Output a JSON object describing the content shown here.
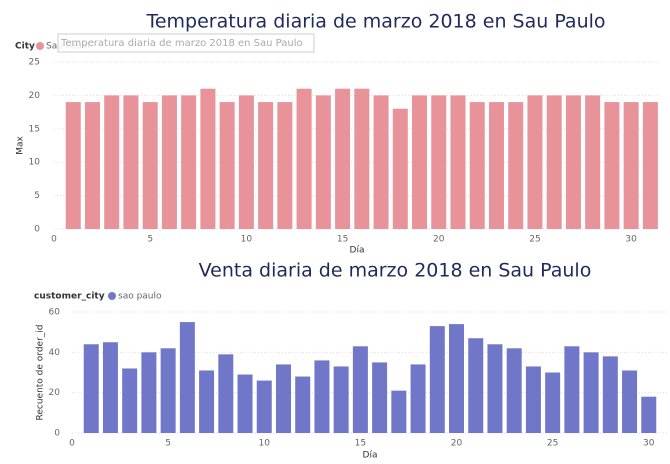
{
  "chart_data": [
    {
      "type": "bar",
      "title": "Temperatura diaria de marzo 2018 en Sau Paulo",
      "tooltip": "Temperatura diaria de marzo 2018 en Sau Paulo",
      "legend_title": "City",
      "x": [
        1,
        2,
        3,
        4,
        5,
        6,
        7,
        8,
        9,
        10,
        11,
        12,
        13,
        14,
        15,
        16,
        17,
        18,
        19,
        20,
        21,
        22,
        23,
        24,
        25,
        26,
        27,
        28,
        29,
        30,
        31
      ],
      "series": [
        {
          "name": "Sao Paulo",
          "color": "#e8939a",
          "values": [
            19,
            19,
            20,
            20,
            19,
            20,
            20,
            21,
            19,
            20,
            19,
            19,
            21,
            20,
            21,
            21,
            20,
            18,
            20,
            20,
            20,
            19,
            19,
            19,
            20,
            20,
            20,
            20,
            19,
            19,
            19
          ]
        }
      ],
      "xlabel": "Día",
      "ylabel": "Max",
      "xlim": [
        0,
        31.5
      ],
      "xticks": [
        0,
        5,
        10,
        15,
        20,
        25,
        30
      ],
      "ylim": [
        0,
        25
      ],
      "yticks": [
        0,
        5,
        10,
        15,
        20,
        25
      ],
      "grid": true
    },
    {
      "type": "bar",
      "title": "Venta diaria de marzo 2018 en Sau Paulo",
      "legend_title": "customer_city",
      "x": [
        1,
        2,
        3,
        4,
        5,
        6,
        7,
        8,
        9,
        10,
        11,
        12,
        13,
        14,
        15,
        16,
        17,
        18,
        19,
        20,
        21,
        22,
        23,
        24,
        25,
        26,
        27,
        28,
        29,
        30
      ],
      "series": [
        {
          "name": "sao paulo",
          "color": "#7077c8",
          "values": [
            44,
            45,
            32,
            40,
            42,
            55,
            31,
            39,
            29,
            26,
            34,
            28,
            36,
            33,
            43,
            35,
            21,
            34,
            53,
            54,
            47,
            44,
            42,
            33,
            30,
            43,
            40,
            38,
            31,
            18
          ]
        }
      ],
      "xlabel": "Día",
      "ylabel": "Recuento de order_id",
      "xlim": [
        0,
        31
      ],
      "xticks": [
        0,
        5,
        10,
        15,
        20,
        25,
        30
      ],
      "ylim": [
        0,
        60
      ],
      "yticks": [
        0,
        20,
        40,
        60
      ],
      "grid": true
    }
  ]
}
